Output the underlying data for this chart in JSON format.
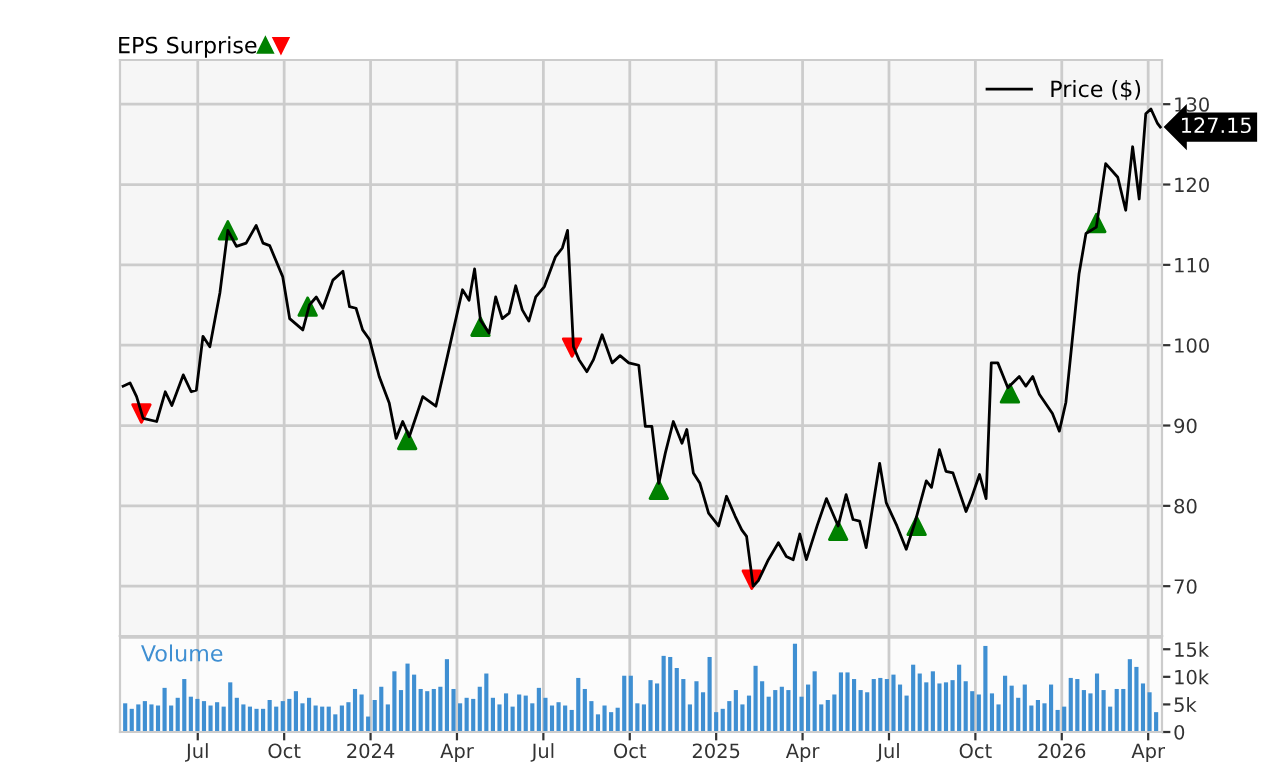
{
  "chart_data": [
    {
      "type": "line",
      "legend": "top right",
      "legend_title": "EPS Surprise",
      "grid": true,
      "tick_labels": "y",
      "xlim": [
        2023.275,
        2026.29
      ],
      "xticks": [
        {
          "value": 2023.5,
          "label": null
        },
        {
          "value": 2023.75,
          "label": null
        },
        {
          "value": 2024.0,
          "label": null
        },
        {
          "value": 2024.25,
          "label": null
        },
        {
          "value": 2024.5,
          "label": null
        },
        {
          "value": 2024.75,
          "label": null
        },
        {
          "value": 2025.0,
          "label": null
        },
        {
          "value": 2025.25,
          "label": null
        },
        {
          "value": 2025.5,
          "label": null
        },
        {
          "value": 2025.75,
          "label": null
        },
        {
          "value": 2026.0,
          "label": null
        },
        {
          "value": 2026.25,
          "label": null
        }
      ],
      "ylim": [
        63.8,
        135.5
      ],
      "yticks": [
        70,
        80,
        90,
        100,
        110,
        120,
        130
      ],
      "annotations": [
        {
          "text": "127.15",
          "x": 2026.285,
          "y": 127.15
        }
      ],
      "series": [
        {
          "name": "Price ($)",
          "type": "line",
          "color": "#000000",
          "x": [
            2023.284,
            2023.304,
            2023.323,
            2023.342,
            2023.381,
            2023.406,
            2023.425,
            2023.458,
            2023.481,
            2023.496,
            2023.515,
            2023.535,
            2023.564,
            2023.587,
            2023.612,
            2023.64,
            2023.669,
            2023.689,
            2023.708,
            2023.746,
            2023.766,
            2023.804,
            2023.823,
            2023.843,
            2023.862,
            2023.891,
            2023.92,
            2023.939,
            2023.958,
            2023.977,
            2023.997,
            2024.025,
            2024.054,
            2024.074,
            2024.093,
            2024.112,
            2024.151,
            2024.189,
            2024.218,
            2024.266,
            2024.285,
            2024.301,
            2024.318,
            2024.343,
            2024.362,
            2024.381,
            2024.401,
            2024.42,
            2024.439,
            2024.458,
            2024.478,
            2024.503,
            2024.535,
            2024.555,
            2024.57,
            2024.587,
            2024.603,
            2024.626,
            2024.645,
            2024.67,
            2024.699,
            2024.722,
            2024.747,
            2024.776,
            2024.795,
            2024.814,
            2024.834,
            2024.853,
            2024.876,
            2024.901,
            2024.915,
            2024.934,
            2024.953,
            2024.978,
            2025.007,
            2025.03,
            2025.055,
            2025.074,
            2025.088,
            2025.107,
            2025.122,
            2025.151,
            2025.18,
            2025.203,
            2025.223,
            2025.242,
            2025.261,
            2025.292,
            2025.319,
            2025.353,
            2025.376,
            2025.396,
            2025.415,
            2025.434,
            2025.473,
            2025.492,
            2025.523,
            2025.55,
            2025.575,
            2025.608,
            2025.623,
            2025.646,
            2025.665,
            2025.685,
            2025.723,
            2025.738,
            2025.762,
            2025.781,
            2025.796,
            2025.815,
            2025.844,
            2025.877,
            2025.896,
            2025.916,
            2025.935,
            2025.973,
            2025.993,
            2026.012,
            2026.05,
            2026.07,
            2026.1,
            2026.127,
            2026.162,
            2026.185,
            2026.205,
            2026.224,
            2026.243,
            2026.258,
            2026.277,
            2026.285
          ],
          "values": [
            94.9,
            95.3,
            93.6,
            90.9,
            90.5,
            94.2,
            92.5,
            96.3,
            94.2,
            94.4,
            101.1,
            99.8,
            106.5,
            114.3,
            112.3,
            112.7,
            114.9,
            112.7,
            112.4,
            108.5,
            103.3,
            101.9,
            105.0,
            106.0,
            104.6,
            108.1,
            109.2,
            104.8,
            104.6,
            101.9,
            100.7,
            96.1,
            92.8,
            88.4,
            90.5,
            88.6,
            93.6,
            92.4,
            97.8,
            106.9,
            105.6,
            109.5,
            103.1,
            101.5,
            106.0,
            103.3,
            104.0,
            107.4,
            104.4,
            103.0,
            106.0,
            107.3,
            111.0,
            112.1,
            114.3,
            99.8,
            98.2,
            96.7,
            98.2,
            101.3,
            97.8,
            98.7,
            97.8,
            97.5,
            89.9,
            89.9,
            82.8,
            86.6,
            90.5,
            87.8,
            89.5,
            84.1,
            82.8,
            79.1,
            77.5,
            81.2,
            78.7,
            77.0,
            76.2,
            70.0,
            70.7,
            73.3,
            75.4,
            73.7,
            73.3,
            76.5,
            73.3,
            77.5,
            80.9,
            77.5,
            81.4,
            78.3,
            78.1,
            74.8,
            85.3,
            80.4,
            77.5,
            74.6,
            77.9,
            83.1,
            82.3,
            87.0,
            84.3,
            84.1,
            79.3,
            80.9,
            83.9,
            80.9,
            97.8,
            97.8,
            94.7,
            96.1,
            94.9,
            96.1,
            93.9,
            91.5,
            89.3,
            92.9,
            108.9,
            113.9,
            114.7,
            122.6,
            120.9,
            116.8,
            124.7,
            118.2,
            128.8,
            129.4,
            127.6,
            127.15
          ]
        },
        {
          "type": "scatter",
          "marker": "triangle",
          "color": "#008000",
          "x": [
            2023.587,
            2023.818,
            2024.106,
            2024.318,
            2024.834,
            2025.353,
            2025.58,
            2025.85,
            2026.1
          ],
          "values": [
            114.3,
            104.8,
            88.2,
            102.3,
            82.0,
            76.9,
            77.5,
            94.0,
            115.2
          ]
        },
        {
          "type": "scatter",
          "marker": "triangle_down",
          "color": "#ff0000",
          "x": [
            2023.337,
            2024.583,
            2025.103
          ],
          "values": [
            91.5,
            99.7,
            70.8
          ]
        }
      ]
    },
    {
      "type": "bar",
      "title": "Volume",
      "grid": "x",
      "color": "#3f8fd2",
      "xlim": [
        2023.275,
        2026.29
      ],
      "xticks": [
        {
          "value": 2023.5,
          "label": "Jul"
        },
        {
          "value": 2023.75,
          "label": "Oct"
        },
        {
          "value": 2024.0,
          "label": "2024"
        },
        {
          "value": 2024.25,
          "label": "Apr"
        },
        {
          "value": 2024.5,
          "label": "Jul"
        },
        {
          "value": 2024.75,
          "label": "Oct"
        },
        {
          "value": 2025.0,
          "label": "2025"
        },
        {
          "value": 2025.25,
          "label": "Apr"
        },
        {
          "value": 2025.5,
          "label": "Jul"
        },
        {
          "value": 2025.75,
          "label": "Oct"
        },
        {
          "value": 2026.0,
          "label": "2026"
        },
        {
          "value": 2026.25,
          "label": "Apr"
        }
      ],
      "ylim": [
        0,
        17.4
      ],
      "yticks": [
        {
          "value": 0,
          "label": "0"
        },
        {
          "value": 5,
          "label": "5k"
        },
        {
          "value": 10,
          "label": "10k"
        },
        {
          "value": 15,
          "label": "15k"
        }
      ],
      "x": [
        2023.29,
        2023.309,
        2023.328,
        2023.347,
        2023.366,
        2023.385,
        2023.404,
        2023.423,
        2023.442,
        2023.461,
        2023.48,
        2023.499,
        2023.518,
        2023.537,
        2023.556,
        2023.575,
        2023.594,
        2023.613,
        2023.632,
        2023.651,
        2023.67,
        2023.689,
        2023.708,
        2023.727,
        2023.746,
        2023.765,
        2023.784,
        2023.803,
        2023.822,
        2023.841,
        2023.86,
        2023.879,
        2023.898,
        2023.917,
        2023.936,
        2023.955,
        2023.974,
        2023.993,
        2024.012,
        2024.031,
        2024.05,
        2024.069,
        2024.088,
        2024.107,
        2024.126,
        2024.145,
        2024.164,
        2024.183,
        2024.202,
        2024.221,
        2024.24,
        2024.259,
        2024.278,
        2024.297,
        2024.316,
        2024.335,
        2024.354,
        2024.373,
        2024.392,
        2024.411,
        2024.43,
        2024.449,
        2024.468,
        2024.487,
        2024.506,
        2024.525,
        2024.544,
        2024.563,
        2024.582,
        2024.601,
        2024.62,
        2024.639,
        2024.658,
        2024.677,
        2024.696,
        2024.715,
        2024.734,
        2024.753,
        2024.772,
        2024.791,
        2024.81,
        2024.829,
        2024.848,
        2024.867,
        2024.886,
        2024.905,
        2024.924,
        2024.943,
        2024.962,
        2024.981,
        2025.0,
        2025.019,
        2025.038,
        2025.057,
        2025.076,
        2025.095,
        2025.114,
        2025.133,
        2025.152,
        2025.171,
        2025.19,
        2025.209,
        2025.228,
        2025.247,
        2025.266,
        2025.285,
        2025.304,
        2025.323,
        2025.342,
        2025.361,
        2025.38,
        2025.399,
        2025.418,
        2025.437,
        2025.456,
        2025.475,
        2025.494,
        2025.513,
        2025.532,
        2025.551,
        2025.57,
        2025.589,
        2025.608,
        2025.627,
        2025.646,
        2025.665,
        2025.684,
        2025.703,
        2025.722,
        2025.741,
        2025.76,
        2025.779,
        2025.798,
        2025.817,
        2025.836,
        2025.855,
        2025.874,
        2025.893,
        2025.912,
        2025.931,
        2025.95,
        2025.969,
        2025.988,
        2026.007,
        2026.026,
        2026.045,
        2026.064,
        2026.083,
        2026.102,
        2026.121,
        2026.14,
        2026.159,
        2026.178,
        2026.197,
        2026.216,
        2026.235,
        2026.254,
        2026.273
      ],
      "values": [
        5.2,
        4.2,
        5,
        5.6,
        5,
        4.8,
        8,
        4.8,
        6.2,
        9.6,
        6.4,
        6,
        5.6,
        4.8,
        5.4,
        4.6,
        9,
        6.2,
        5,
        4.6,
        4.2,
        4.2,
        5.8,
        4.6,
        5.6,
        6,
        7.4,
        5.2,
        6.2,
        4.8,
        4.6,
        4.6,
        3.2,
        4.8,
        5.4,
        7.8,
        6.8,
        2.8,
        5.8,
        8.2,
        5,
        11,
        7.6,
        12.4,
        10.4,
        7.8,
        7.4,
        7.8,
        8.2,
        13.2,
        7.8,
        5.2,
        6.2,
        6,
        8.2,
        10.6,
        6.2,
        5,
        7,
        4.6,
        6.8,
        6.6,
        5.2,
        8,
        6.2,
        4.8,
        5.4,
        4.8,
        4,
        9.8,
        7.8,
        5.6,
        3.2,
        4.8,
        3.6,
        4.4,
        10.2,
        10.2,
        5.2,
        5,
        9.4,
        8.8,
        13.8,
        13.6,
        11.6,
        9.6,
        5,
        9.2,
        7.2,
        13.6,
        3.6,
        4.2,
        5.6,
        7.6,
        5,
        6.6,
        12,
        9.2,
        6.4,
        7.6,
        8.2,
        7.6,
        16,
        6.4,
        8.6,
        11,
        5,
        5.8,
        6.8,
        10.8,
        10.8,
        9.6,
        7.6,
        7.2,
        9.6,
        9.8,
        9.6,
        10.4,
        8.6,
        6.6,
        12.2,
        10.6,
        9,
        11,
        8.8,
        9,
        9.4,
        12.2,
        9.2,
        7.4,
        6.8,
        15.6,
        7,
        5,
        10.2,
        8.4,
        6.2,
        8.6,
        4.8,
        5.8,
        5.2,
        8.6,
        4,
        4.6,
        9.8,
        9.6,
        7.6,
        7,
        10.6,
        7.6,
        4.6,
        7.8,
        7.8,
        13.2,
        11.8,
        8.8,
        7.2,
        3.6
      ]
    }
  ]
}
